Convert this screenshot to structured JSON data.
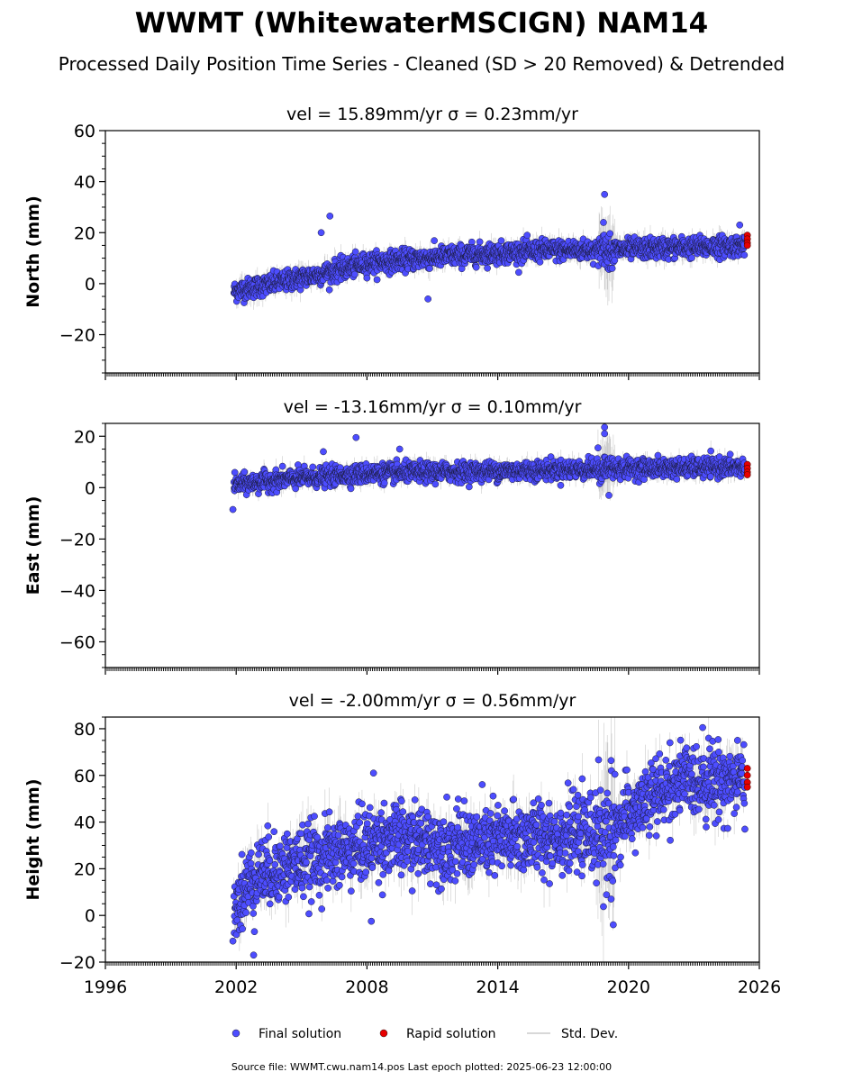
{
  "figure": {
    "title": "WWMT (WhitewaterMSCIGN) NAM14",
    "subtitle": "Processed Daily Position Time Series - Cleaned (SD > 20 Removed) & Detrended",
    "footer": "Source file: WWMT.cwu.nam14.pos  Last epoch plotted: 2025-06-23 12:00:00"
  },
  "legend": {
    "placement": "bottom-center",
    "items": [
      {
        "label": "Final solution",
        "color": "#4d4dff",
        "kind": "dot"
      },
      {
        "label": "Rapid solution",
        "color": "#e60000",
        "kind": "dot"
      },
      {
        "label": "Std. Dev.",
        "color": "#cccccc",
        "kind": "line"
      }
    ]
  },
  "colors": {
    "final": "#4d4dff",
    "rapid": "#e60000",
    "std_dev": "#bdbdbd",
    "marker_edge": "#1a1a3a"
  },
  "chart_data": [
    {
      "type": "scatter",
      "title": "vel = 15.89mm/yr   σ = 0.23mm/yr",
      "ylabel": "North (mm)",
      "xlabel": "",
      "xlim": [
        1996,
        2026
      ],
      "ylim": [
        -35,
        60
      ],
      "yticks": [
        -20,
        0,
        20,
        40,
        60
      ],
      "xticks": [
        1996,
        2002,
        2008,
        2014,
        2020,
        2026
      ],
      "show_xtick_labels": false,
      "trend": [
        [
          2001.9,
          -3
        ],
        [
          2006,
          4
        ],
        [
          2008,
          8
        ],
        [
          2012,
          11
        ],
        [
          2016,
          13
        ],
        [
          2020,
          13.5
        ],
        [
          2025.5,
          15
        ]
      ],
      "noise": 2.0,
      "std_dev": 2.5,
      "outliers": [
        [
          2005.9,
          20
        ],
        [
          2006.3,
          26.5
        ],
        [
          2010.8,
          -6
        ],
        [
          2018.9,
          35
        ],
        [
          2018.85,
          24
        ],
        [
          2025.1,
          23
        ]
      ],
      "rapid": [
        [
          2025.45,
          19
        ],
        [
          2025.45,
          17.5
        ],
        [
          2025.45,
          16
        ],
        [
          2025.45,
          15
        ]
      ]
    },
    {
      "type": "scatter",
      "title": "vel = -13.16mm/yr   σ = 0.10mm/yr",
      "ylabel": "East (mm)",
      "xlabel": "",
      "xlim": [
        1996,
        2026
      ],
      "ylim": [
        -70,
        25
      ],
      "yticks": [
        -60,
        -40,
        -20,
        0,
        20
      ],
      "xticks": [
        1996,
        2002,
        2008,
        2014,
        2020,
        2026
      ],
      "show_xtick_labels": false,
      "trend": [
        [
          2001.9,
          1
        ],
        [
          2004,
          3
        ],
        [
          2008,
          5.5
        ],
        [
          2014,
          6.5
        ],
        [
          2020,
          7.5
        ],
        [
          2025.5,
          8
        ]
      ],
      "noise": 1.8,
      "std_dev": 2.2,
      "outliers": [
        [
          2001.85,
          -8.5
        ],
        [
          2006,
          14
        ],
        [
          2007.5,
          19.5
        ],
        [
          2009.5,
          15
        ],
        [
          2018.9,
          23.5
        ],
        [
          2018.9,
          21
        ],
        [
          2019.1,
          -3
        ]
      ],
      "rapid": [
        [
          2025.45,
          9
        ],
        [
          2025.45,
          7.5
        ],
        [
          2025.45,
          6
        ],
        [
          2025.45,
          5
        ]
      ]
    },
    {
      "type": "scatter",
      "title": "vel = -2.00mm/yr   σ = 0.56mm/yr",
      "ylabel": "Height (mm)",
      "xlabel": "",
      "xlim": [
        1996,
        2026
      ],
      "ylim": [
        -20,
        85
      ],
      "yticks": [
        -20,
        0,
        20,
        40,
        60,
        80
      ],
      "xticks": [
        1996,
        2002,
        2008,
        2014,
        2020,
        2026
      ],
      "xtick_labels": [
        "1996",
        "2002",
        "2008",
        "2014",
        "2020",
        "2026"
      ],
      "show_xtick_labels": true,
      "trend": [
        [
          2001.9,
          5
        ],
        [
          2003,
          18
        ],
        [
          2006,
          25
        ],
        [
          2009,
          33
        ],
        [
          2012,
          30
        ],
        [
          2016,
          34
        ],
        [
          2019,
          35
        ],
        [
          2021,
          50
        ],
        [
          2022.5,
          58
        ],
        [
          2025.5,
          58
        ]
      ],
      "noise": 7.5,
      "std_dev": 6,
      "outliers": [
        [
          2001.85,
          -11
        ],
        [
          2002.8,
          -17
        ],
        [
          2008.2,
          -2.5
        ],
        [
          2008.3,
          61
        ],
        [
          2019.3,
          -4
        ],
        [
          2019.2,
          7
        ],
        [
          2023.4,
          80.5
        ],
        [
          2025,
          75
        ]
      ],
      "rapid": [
        [
          2025.45,
          63
        ],
        [
          2025.45,
          60
        ],
        [
          2025.45,
          57
        ],
        [
          2025.45,
          55
        ]
      ]
    }
  ]
}
